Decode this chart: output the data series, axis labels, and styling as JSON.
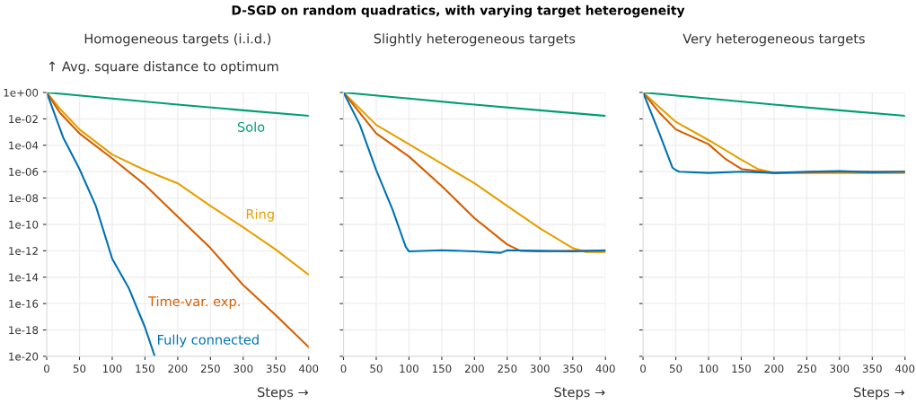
{
  "chart_data": [
    {
      "type": "line",
      "title": "Homogeneous targets (i.i.d.)",
      "annotations": [
        "D-SGD on random quadratics, with varying target heterogeneity"
      ],
      "ylabel": "↑ Avg. square distance to optimum",
      "xlabel": "Steps →",
      "log": "y",
      "grid": true,
      "xlim": [
        0,
        400
      ],
      "ylim": [
        1e-20,
        1
      ],
      "xticks": [
        0,
        50,
        100,
        150,
        200,
        250,
        300,
        350,
        400
      ],
      "yticks": [
        {
          "value": 1,
          "label": "1e+00"
        },
        {
          "value": 0.01,
          "label": "1e-02"
        },
        {
          "value": 0.0001,
          "label": "1e-04"
        },
        {
          "value": 1e-06,
          "label": "1e-06"
        },
        {
          "value": 1e-08,
          "label": "1e-08"
        },
        {
          "value": 1e-10,
          "label": "1e-10"
        },
        {
          "value": 1e-12,
          "label": "1e-12"
        },
        {
          "value": 1e-14,
          "label": "1e-14"
        },
        {
          "value": 1e-16,
          "label": "1e-16"
        },
        {
          "value": 1e-18,
          "label": "1e-18"
        },
        {
          "value": 1e-20,
          "label": "1e-20"
        }
      ],
      "series": [
        {
          "name": "Solo",
          "color": "#009e73",
          "x": [
            0,
            100,
            200,
            300,
            400
          ],
          "values": [
            1,
            0.35,
            0.12,
            0.045,
            0.017
          ]
        },
        {
          "name": "Ring",
          "color": "#e69f00",
          "x": [
            0,
            20,
            50,
            100,
            150,
            200,
            250,
            300,
            350,
            400
          ],
          "values": [
            1,
            0.06,
            0.0016,
            2e-05,
            1.3e-06,
            1.3e-07,
            2.5e-09,
            6e-11,
            1.2e-12,
            1.5e-14
          ]
        },
        {
          "name": "Time-var. exp.",
          "color": "#d55e00",
          "x": [
            0,
            20,
            50,
            100,
            150,
            200,
            250,
            300,
            350,
            400
          ],
          "values": [
            1,
            0.03,
            0.0008,
            1e-05,
            1e-07,
            4e-10,
            1.6e-12,
            2.5e-15,
            1.3e-17,
            5e-20
          ]
        },
        {
          "name": "Fully connected",
          "color": "#0072b2",
          "x": [
            0,
            25,
            50,
            75,
            100,
            125,
            150,
            165
          ],
          "values": [
            1,
            0.0004,
            1.6e-06,
            2.5e-09,
            2.5e-13,
            1.6e-15,
            1.6e-18,
            1e-20
          ]
        }
      ]
    },
    {
      "type": "line",
      "title": "Slightly heterogeneous targets",
      "xlabel": "Steps →",
      "log": "y",
      "grid": true,
      "tick_labels": "x",
      "xlim": [
        0,
        400
      ],
      "ylim": [
        1e-20,
        1
      ],
      "xticks": [
        0,
        50,
        100,
        150,
        200,
        250,
        300,
        350,
        400
      ],
      "yticks": [
        {
          "value": 1,
          "label": null
        },
        {
          "value": 0.01,
          "label": null
        },
        {
          "value": 0.0001,
          "label": null
        },
        {
          "value": 1e-06,
          "label": null
        },
        {
          "value": 1e-08,
          "label": null
        },
        {
          "value": 1e-10,
          "label": null
        },
        {
          "value": 1e-12,
          "label": null
        },
        {
          "value": 1e-14,
          "label": null
        },
        {
          "value": 1e-16,
          "label": null
        },
        {
          "value": 1e-18,
          "label": null
        },
        {
          "value": 1e-20,
          "label": null
        }
      ],
      "series": [
        {
          "color": "#009e73",
          "x": [
            0,
            100,
            200,
            300,
            400
          ],
          "values": [
            1,
            0.35,
            0.12,
            0.045,
            0.017
          ]
        },
        {
          "color": "#e69f00",
          "x": [
            0,
            50,
            100,
            150,
            200,
            250,
            300,
            350,
            370,
            400
          ],
          "values": [
            1,
            0.0035,
            0.00012,
            4e-06,
            1.3e-07,
            2.5e-09,
            5e-11,
            1.6e-12,
            8e-13,
            8e-13
          ]
        },
        {
          "color": "#d55e00",
          "x": [
            0,
            50,
            100,
            150,
            200,
            250,
            270,
            300,
            350,
            400
          ],
          "values": [
            1,
            0.0008,
            1.4e-05,
            8e-08,
            3e-10,
            3e-12,
            1e-12,
            9e-13,
            1e-12,
            1e-12
          ]
        },
        {
          "color": "#0072b2",
          "x": [
            0,
            25,
            50,
            75,
            95,
            100,
            150,
            200,
            240,
            250,
            300,
            350,
            400
          ],
          "values": [
            1,
            0.0035,
            1.3e-06,
            1.3e-09,
            2e-12,
            9e-13,
            1.1e-12,
            9e-13,
            7e-13,
            1.1e-12,
            1e-12,
            9e-13,
            1.1e-12
          ]
        }
      ]
    },
    {
      "type": "line",
      "title": "Very heterogeneous targets",
      "xlabel": "Steps →",
      "log": "y",
      "grid": true,
      "tick_labels": "x",
      "xlim": [
        0,
        400
      ],
      "ylim": [
        1e-20,
        1
      ],
      "xticks": [
        0,
        50,
        100,
        150,
        200,
        250,
        300,
        350,
        400
      ],
      "yticks": [
        {
          "value": 1,
          "label": null
        },
        {
          "value": 0.01,
          "label": null
        },
        {
          "value": 0.0001,
          "label": null
        },
        {
          "value": 1e-06,
          "label": null
        },
        {
          "value": 1e-08,
          "label": null
        },
        {
          "value": 1e-10,
          "label": null
        },
        {
          "value": 1e-12,
          "label": null
        },
        {
          "value": 1e-14,
          "label": null
        },
        {
          "value": 1e-16,
          "label": null
        },
        {
          "value": 1e-18,
          "label": null
        },
        {
          "value": 1e-20,
          "label": null
        }
      ],
      "series": [
        {
          "color": "#009e73",
          "x": [
            0,
            100,
            200,
            300,
            400
          ],
          "values": [
            1,
            0.35,
            0.12,
            0.045,
            0.017
          ]
        },
        {
          "color": "#e69f00",
          "x": [
            0,
            50,
            100,
            150,
            175,
            200,
            300,
            400
          ],
          "values": [
            1,
            0.006,
            0.00025,
            8e-06,
            1.6e-06,
            8e-07,
            8e-07,
            8e-07
          ]
        },
        {
          "color": "#d55e00",
          "x": [
            0,
            25,
            50,
            100,
            125,
            150,
            175,
            200,
            300,
            400
          ],
          "values": [
            1,
            0.03,
            0.0016,
            0.00012,
            1e-05,
            1.6e-06,
            1.1e-06,
            8e-07,
            1e-06,
            1e-06
          ]
        },
        {
          "color": "#0072b2",
          "x": [
            0,
            25,
            45,
            50,
            55,
            100,
            150,
            200,
            250,
            300,
            350,
            400
          ],
          "values": [
            1,
            0.0008,
            2e-06,
            1.3e-06,
            1e-06,
            8e-07,
            1e-06,
            8e-07,
            1e-06,
            1.1e-06,
            9e-07,
            1e-06
          ]
        }
      ]
    }
  ]
}
